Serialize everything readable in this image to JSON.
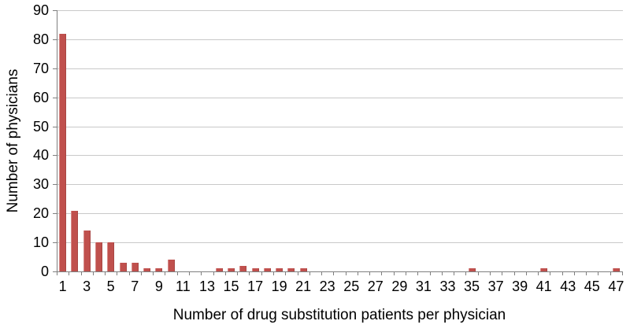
{
  "chart_data": {
    "type": "bar",
    "title": "",
    "xlabel": "Number of drug substitution patients per physician",
    "ylabel": "Number of physicians",
    "categories": [
      1,
      2,
      3,
      4,
      5,
      6,
      7,
      8,
      9,
      10,
      11,
      12,
      13,
      14,
      15,
      16,
      17,
      18,
      19,
      20,
      21,
      22,
      23,
      24,
      25,
      26,
      27,
      28,
      29,
      30,
      31,
      32,
      33,
      34,
      35,
      36,
      37,
      38,
      39,
      40,
      41,
      42,
      43,
      44,
      45,
      46,
      47
    ],
    "values": [
      82,
      21,
      14,
      10,
      10,
      3,
      3,
      1,
      1,
      4,
      0,
      0,
      0,
      1,
      1,
      2,
      1,
      1,
      1,
      1,
      1,
      0,
      0,
      0,
      0,
      0,
      0,
      0,
      0,
      0,
      0,
      0,
      0,
      0,
      1,
      0,
      0,
      0,
      0,
      0,
      1,
      0,
      0,
      0,
      0,
      0,
      1
    ],
    "xtick_labels": [
      1,
      3,
      5,
      7,
      9,
      11,
      13,
      15,
      17,
      19,
      21,
      23,
      25,
      27,
      29,
      31,
      33,
      35,
      37,
      39,
      41,
      43,
      45,
      47
    ],
    "ytick_labels": [
      0,
      10,
      20,
      30,
      40,
      50,
      60,
      70,
      80,
      90
    ],
    "ylim": [
      0,
      90
    ],
    "grid": true,
    "legend": "none",
    "bar_color": "#c0504d",
    "gridline_color": "#c9c9c9",
    "axis_color": "#7f7f7f",
    "text_color": "#000000"
  }
}
